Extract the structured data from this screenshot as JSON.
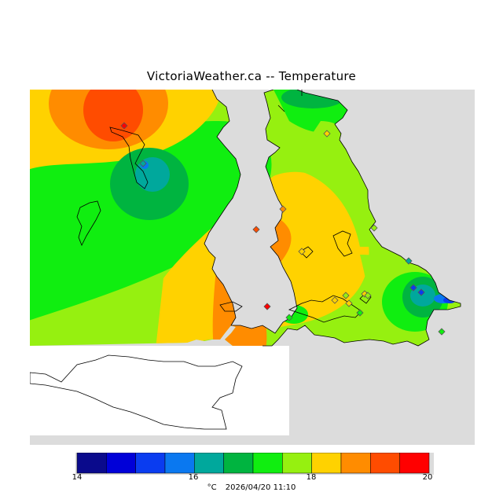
{
  "title": "VictoriaWeather.ca -- Temperature",
  "legend": {
    "min": 14,
    "max": 20,
    "tick_labels": [
      "14",
      "16",
      "18",
      "20"
    ],
    "tick_values": [
      14,
      16,
      18,
      20
    ],
    "colors": [
      "#0a0a8c",
      "#0000d8",
      "#0a3cf0",
      "#0a78f0",
      "#00a89c",
      "#00b440",
      "#10ee10",
      "#96f010",
      "#ffd200",
      "#ff8c00",
      "#ff4c00",
      "#ff0000"
    ]
  },
  "caption": {
    "unit": "°C",
    "timestamp": "2026/04/20 11:10"
  },
  "map": {
    "background_color": "#dcdcdc",
    "stations": [
      {
        "temp": 19.8
      },
      {
        "temp": 16.2
      },
      {
        "temp": 19.0
      },
      {
        "temp": 18.6
      },
      {
        "temp": 18.4
      },
      {
        "temp": 18.2
      },
      {
        "temp": 17.8
      },
      {
        "temp": 19.6
      },
      {
        "temp": 17.0
      },
      {
        "temp": 18.3
      },
      {
        "temp": 18.1
      },
      {
        "temp": 18.0
      },
      {
        "temp": 17.6
      },
      {
        "temp": 16.4
      },
      {
        "temp": 15.2
      },
      {
        "temp": 15.0
      },
      {
        "temp": 17.4
      },
      {
        "temp": 17.2
      },
      {
        "temp": 17.8
      }
    ]
  }
}
